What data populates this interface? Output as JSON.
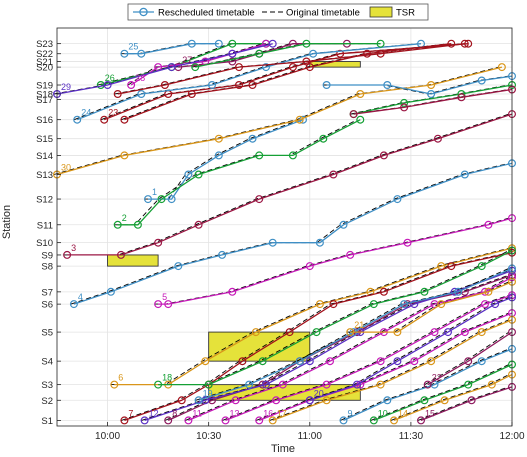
{
  "chart_data": {
    "type": "line",
    "xlabel": "Time",
    "ylabel": "Station",
    "x_unit": "minutes after 9:45",
    "xlim": [
      0,
      135
    ],
    "x_ticks": [
      {
        "value": 15,
        "label": "10:00"
      },
      {
        "value": 45,
        "label": "10:30"
      },
      {
        "value": 75,
        "label": "11:00"
      },
      {
        "value": 105,
        "label": "11:30"
      },
      {
        "value": 135,
        "label": "12:00"
      }
    ],
    "y_ticks": [
      {
        "label": "S1",
        "pos": 1.2
      },
      {
        "label": "S2",
        "pos": 3.0
      },
      {
        "label": "S3",
        "pos": 4.4
      },
      {
        "label": "S4",
        "pos": 6.5
      },
      {
        "label": "S5",
        "pos": 9.1
      },
      {
        "label": "S6",
        "pos": 11.6
      },
      {
        "label": "S7",
        "pos": 12.7
      },
      {
        "label": "S8",
        "pos": 15.0
      },
      {
        "label": "S9",
        "pos": 16.0
      },
      {
        "label": "S10",
        "pos": 17.1
      },
      {
        "label": "S11",
        "pos": 18.7
      },
      {
        "label": "S12",
        "pos": 21.0
      },
      {
        "label": "S13",
        "pos": 23.2
      },
      {
        "label": "S14",
        "pos": 24.9
      },
      {
        "label": "S15",
        "pos": 26.4
      },
      {
        "label": "S16",
        "pos": 28.1
      },
      {
        "label": "S17",
        "pos": 29.9
      },
      {
        "label": "S18",
        "pos": 30.4
      },
      {
        "label": "S19",
        "pos": 31.2
      },
      {
        "label": "S20",
        "pos": 32.8
      },
      {
        "label": "S21",
        "pos": 33.3
      },
      {
        "label": "S22",
        "pos": 34.0
      },
      {
        "label": "S23",
        "pos": 34.9
      }
    ],
    "ylim": [
      0.7,
      36.3
    ],
    "grid": true,
    "legend": {
      "position": "top",
      "entries": [
        {
          "label": "Rescheduled timetable",
          "style": "line-circle",
          "color": "#3f8fc5"
        },
        {
          "label": "Original timetable",
          "style": "dashed",
          "color": "#000000"
        },
        {
          "label": "TSR",
          "style": "patch",
          "color": "#e5e23a"
        }
      ]
    },
    "tsr_zones": [
      {
        "x": [
          15,
          30
        ],
        "y": [
          15.0,
          16.0
        ]
      },
      {
        "x": [
          45,
          75
        ],
        "y": [
          6.5,
          9.1
        ]
      },
      {
        "x": [
          45,
          90
        ],
        "y": [
          3.0,
          4.4
        ]
      },
      {
        "x": [
          75,
          90
        ],
        "y": [
          32.8,
          33.3
        ]
      }
    ],
    "series": [
      {
        "label": "1",
        "color": "#3f8fc5",
        "points": [
          [
            27,
            21
          ],
          [
            34,
            21
          ],
          [
            39,
            23.2
          ],
          [
            48,
            24.9
          ],
          [
            58,
            26.4
          ],
          [
            73,
            28.1
          ]
        ]
      },
      {
        "label": "2",
        "color": "#15a035",
        "points": [
          [
            18,
            18.7
          ],
          [
            24,
            18.7
          ],
          [
            31,
            21
          ],
          [
            42,
            23.2
          ],
          [
            60,
            24.9
          ],
          [
            70,
            24.9
          ],
          [
            79,
            26.4
          ],
          [
            90,
            28.1
          ]
        ]
      },
      {
        "label": "3",
        "color": "#9b1744",
        "points": [
          [
            3,
            16
          ],
          [
            19,
            16
          ],
          [
            30,
            17.1
          ],
          [
            42,
            18.7
          ],
          [
            60,
            21
          ],
          [
            82,
            23.2
          ],
          [
            97,
            24.9
          ],
          [
            113,
            26.4
          ],
          [
            135,
            28.6
          ]
        ]
      },
      {
        "label": "4",
        "color": "#3f8fc5",
        "points": [
          [
            5,
            11.6
          ],
          [
            16,
            12.7
          ],
          [
            36,
            15
          ],
          [
            49,
            16
          ],
          [
            64,
            17.1
          ],
          [
            78,
            17.1
          ],
          [
            85,
            18.7
          ],
          [
            101,
            21
          ],
          [
            121,
            23.2
          ],
          [
            135,
            24.2
          ]
        ]
      },
      {
        "label": "5",
        "color": "#c61ab8",
        "points": [
          [
            30,
            11.6
          ],
          [
            33,
            11.6
          ],
          [
            52,
            12.7
          ],
          [
            75,
            15
          ],
          [
            87,
            16
          ],
          [
            104,
            17.1
          ],
          [
            128,
            18.7
          ],
          [
            135,
            19.3
          ]
        ]
      },
      {
        "label": "6",
        "color": "#d9961a",
        "points": [
          [
            17,
            4.4
          ],
          [
            33,
            4.4
          ],
          [
            44,
            6.5
          ],
          [
            59,
            9.1
          ],
          [
            78,
            11.6
          ],
          [
            93,
            12.7
          ],
          [
            114,
            15
          ],
          [
            135,
            16.6
          ]
        ]
      },
      {
        "label": "7",
        "color": "#a3121c",
        "points": [
          [
            20,
            1.2
          ],
          [
            37,
            3
          ],
          [
            45,
            4.4
          ],
          [
            55,
            6.5
          ],
          [
            69,
            9.1
          ],
          [
            82,
            11.6
          ],
          [
            97,
            12.7
          ],
          [
            117,
            15
          ],
          [
            135,
            16.2
          ]
        ]
      },
      {
        "label": "8",
        "color": "#8e1a5e",
        "points": [
          [
            33,
            1.2
          ],
          [
            46,
            3
          ],
          [
            61,
            4.4
          ],
          [
            72,
            6.5
          ],
          [
            89,
            9.1
          ],
          [
            104,
            11.6
          ],
          [
            121,
            12.7
          ],
          [
            135,
            14.2
          ]
        ]
      },
      {
        "label": "9",
        "color": "#3f8fc5",
        "points": [
          [
            85,
            1.2
          ],
          [
            98,
            3
          ],
          [
            112,
            4.4
          ],
          [
            126,
            6.5
          ],
          [
            135,
            7.6
          ]
        ]
      },
      {
        "label": "10",
        "color": "#15a035",
        "points": [
          [
            94,
            1.2
          ],
          [
            109,
            3
          ],
          [
            122,
            4.4
          ],
          [
            135,
            6.2
          ]
        ]
      },
      {
        "label": "11",
        "color": "#c61ab8",
        "points": [
          [
            39,
            1.2
          ],
          [
            53,
            3
          ],
          [
            67,
            4.4
          ],
          [
            81,
            6.5
          ],
          [
            97,
            9.1
          ],
          [
            112,
            11.6
          ],
          [
            127,
            12.7
          ],
          [
            135,
            14.0
          ]
        ]
      },
      {
        "label": "12",
        "color": "#5a2fc4",
        "points": [
          [
            26,
            1.2
          ],
          [
            44,
            3
          ],
          [
            62,
            4.4
          ],
          [
            75,
            6.5
          ],
          [
            90,
            9.1
          ],
          [
            106,
            11.6
          ],
          [
            118,
            12.7
          ],
          [
            135,
            14.6
          ]
        ]
      },
      {
        "label": "13",
        "color": "#c61ab8",
        "points": [
          [
            50,
            1.2
          ],
          [
            65,
            3
          ],
          [
            80,
            4.4
          ],
          [
            96,
            6.5
          ],
          [
            112,
            9.1
          ],
          [
            127,
            11.6
          ],
          [
            135,
            12.4
          ]
        ]
      },
      {
        "label": "14",
        "color": "#d9961a",
        "points": [
          [
            100,
            1.2
          ],
          [
            115,
            3
          ],
          [
            129,
            4.4
          ],
          [
            135,
            5.3
          ]
        ]
      },
      {
        "label": "15",
        "color": "#8e1a5e",
        "points": [
          [
            108,
            1.2
          ],
          [
            123,
            3
          ],
          [
            135,
            4.2
          ]
        ]
      },
      {
        "label": "16",
        "color": "#c61ab8",
        "points": [
          [
            60,
            1.2
          ],
          [
            75,
            3
          ],
          [
            90,
            4.4
          ],
          [
            106,
            6.5
          ],
          [
            121,
            9.1
          ],
          [
            135,
            10.8
          ]
        ]
      },
      {
        "label": "17",
        "color": "#d9961a",
        "points": [
          [
            64,
            1.2
          ],
          [
            80,
            3
          ],
          [
            96,
            4.4
          ],
          [
            111,
            6.5
          ],
          [
            126,
            9.1
          ],
          [
            135,
            10.2
          ]
        ]
      },
      {
        "label": "18",
        "color": "#15a035",
        "points": [
          [
            30,
            4.4
          ],
          [
            45,
            4.4
          ],
          [
            61,
            6.5
          ],
          [
            77,
            9.1
          ],
          [
            94,
            11.6
          ],
          [
            109,
            12.7
          ],
          [
            126,
            15
          ],
          [
            135,
            16.4
          ]
        ]
      },
      {
        "label": "19",
        "color": "#3f8fc5",
        "points": [
          [
            42,
            3
          ],
          [
            57,
            4.4
          ],
          [
            72,
            6.5
          ],
          [
            88,
            9.1
          ],
          [
            103,
            11.6
          ],
          [
            119,
            12.7
          ],
          [
            135,
            14.8
          ]
        ]
      },
      {
        "label": "20",
        "color": "#5a2fc4",
        "points": [
          [
            75,
            3
          ],
          [
            89,
            4.4
          ],
          [
            101,
            6.5
          ],
          [
            116,
            9.1
          ],
          [
            130,
            11.6
          ],
          [
            135,
            12.2
          ]
        ]
      },
      {
        "label": "21",
        "color": "#d9961a",
        "points": [
          [
            87,
            9.1
          ],
          [
            101,
            9.1
          ],
          [
            114,
            11.6
          ],
          [
            128,
            12.7
          ],
          [
            135,
            13.6
          ]
        ]
      },
      {
        "label": "22",
        "color": "#8e1a5e",
        "points": [
          [
            110,
            4.4
          ],
          [
            122,
            6.5
          ],
          [
            135,
            9.1
          ]
        ]
      },
      {
        "label": "23",
        "color": "#a3121c",
        "points": [
          [
            14,
            28.1
          ],
          [
            33,
            30.4
          ],
          [
            54,
            31.2
          ],
          [
            70,
            32.8
          ],
          [
            84,
            34.0
          ],
          [
            122,
            34.9
          ]
        ]
      },
      {
        "label": "24",
        "color": "#3f8fc5",
        "points": [
          [
            6,
            28.1
          ],
          [
            25,
            30.4
          ],
          [
            46,
            31.2
          ],
          [
            62,
            32.8
          ],
          [
            76,
            34.0
          ],
          [
            108,
            34.9
          ]
        ]
      },
      {
        "label": "25",
        "color": "#3f8fc5",
        "points": [
          [
            20,
            34.0
          ],
          [
            25,
            34.0
          ],
          [
            40,
            34.9
          ],
          [
            48,
            34.9
          ]
        ]
      },
      {
        "label": "26",
        "color": "#15a035",
        "points": [
          [
            13,
            31.2
          ],
          [
            34,
            32.8
          ],
          [
            52,
            34.9
          ],
          [
            62,
            34.9
          ]
        ]
      },
      {
        "label": "27",
        "color": "#8e1a5e",
        "points": [
          [
            36,
            32.8
          ],
          [
            52,
            33.3
          ],
          [
            60,
            34.0
          ],
          [
            70,
            34.9
          ],
          [
            86,
            34.9
          ]
        ]
      },
      {
        "label": "28",
        "color": "#c61ab8",
        "points": [
          [
            22,
            31.2
          ],
          [
            30,
            32.8
          ],
          [
            44,
            33.3
          ],
          [
            52,
            34.0
          ],
          [
            62,
            34.9
          ]
        ]
      },
      {
        "label": "29",
        "color": "#5a2fc4",
        "points": [
          [
            0,
            30.4
          ],
          [
            15,
            31.2
          ],
          [
            34,
            32.8
          ],
          [
            52,
            34.0
          ],
          [
            64,
            34.9
          ]
        ]
      },
      {
        "label": "30",
        "color": "#d9961a",
        "points": [
          [
            0,
            23.2
          ],
          [
            20,
            24.9
          ],
          [
            48,
            26.4
          ],
          [
            72,
            28.1
          ],
          [
            90,
            30.4
          ],
          [
            111,
            31.2
          ],
          [
            132,
            32.8
          ]
        ]
      },
      {
        "label": "",
        "color": "#a3121c",
        "points": [
          [
            18,
            30.4
          ],
          [
            32,
            31.2
          ],
          [
            54,
            32.8
          ],
          [
            74,
            33.3
          ],
          [
            96,
            34.0
          ],
          [
            121,
            34.9
          ]
        ]
      },
      {
        "label": "",
        "color": "#15a035",
        "points": [
          [
            41,
            32.8
          ],
          [
            60,
            34.0
          ],
          [
            74,
            34.9
          ],
          [
            96,
            34.9
          ]
        ]
      },
      {
        "label": "",
        "color": "#3f8fc5",
        "points": [
          [
            80,
            31.2
          ],
          [
            98,
            31.2
          ],
          [
            111,
            30.4
          ],
          [
            126,
            31.6
          ],
          [
            135,
            32.0
          ]
        ]
      },
      {
        "label": "",
        "color": "#15a035",
        "points": [
          [
            88,
            28.6
          ],
          [
            103,
            29.6
          ],
          [
            120,
            30.4
          ],
          [
            135,
            31.2
          ]
        ]
      },
      {
        "label": "",
        "color": "#9b1744",
        "points": [
          [
            88,
            28.6
          ],
          [
            103,
            29.2
          ],
          [
            120,
            30.1
          ],
          [
            135,
            30.8
          ]
        ]
      },
      {
        "label": "",
        "color": "#a3121c",
        "points": [
          [
            20,
            28.1
          ],
          [
            40,
            30.4
          ],
          [
            58,
            31.2
          ],
          [
            75,
            32.8
          ],
          [
            92,
            34.0
          ],
          [
            117,
            34.9
          ]
        ]
      }
    ]
  }
}
